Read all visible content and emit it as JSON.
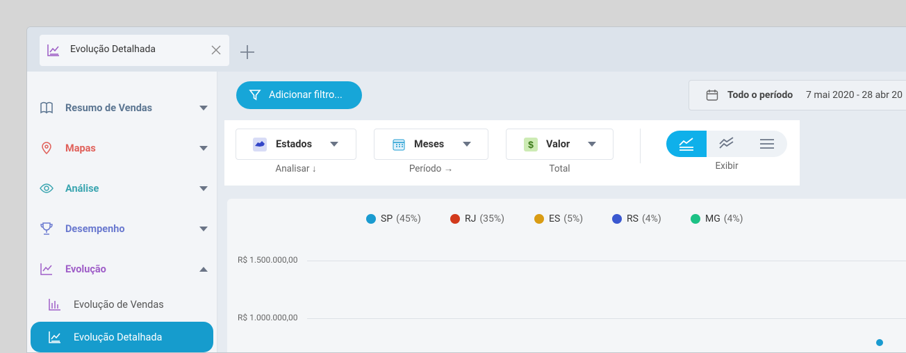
{
  "tab": {
    "title": "Evolução Detalhada"
  },
  "sidebar": {
    "items": [
      "Resumo de Vendas",
      "Mapas",
      "Análise",
      "Desempenho",
      "Evolução"
    ],
    "subitems": [
      "Evolução de Vendas",
      "Evolução Detalhada"
    ]
  },
  "toolbar": {
    "filter_button": "Adicionar filtro...",
    "period_label": "Todo o período",
    "period_range": "7 mai 2020 - 28 abr 20"
  },
  "controls": [
    {
      "value": "Estados",
      "caption": "Analisar ↓"
    },
    {
      "value": "Meses",
      "caption": "Período →"
    },
    {
      "value": "Valor",
      "caption": "Total"
    }
  ],
  "display": {
    "caption": "Exibir"
  },
  "legend": [
    {
      "name": "SP",
      "share": "(45%)",
      "color": "#1a9bd0"
    },
    {
      "name": "RJ",
      "share": "(35%)",
      "color": "#d23a1c"
    },
    {
      "name": "ES",
      "share": "(5%)",
      "color": "#d99c14"
    },
    {
      "name": "RS",
      "share": "(4%)",
      "color": "#3a58d0"
    },
    {
      "name": "MG",
      "share": "(4%)",
      "color": "#1cc185"
    }
  ],
  "axis": {
    "labels": [
      "R$ 1.500.000,00",
      "R$ 1.000.000,00"
    ]
  }
}
